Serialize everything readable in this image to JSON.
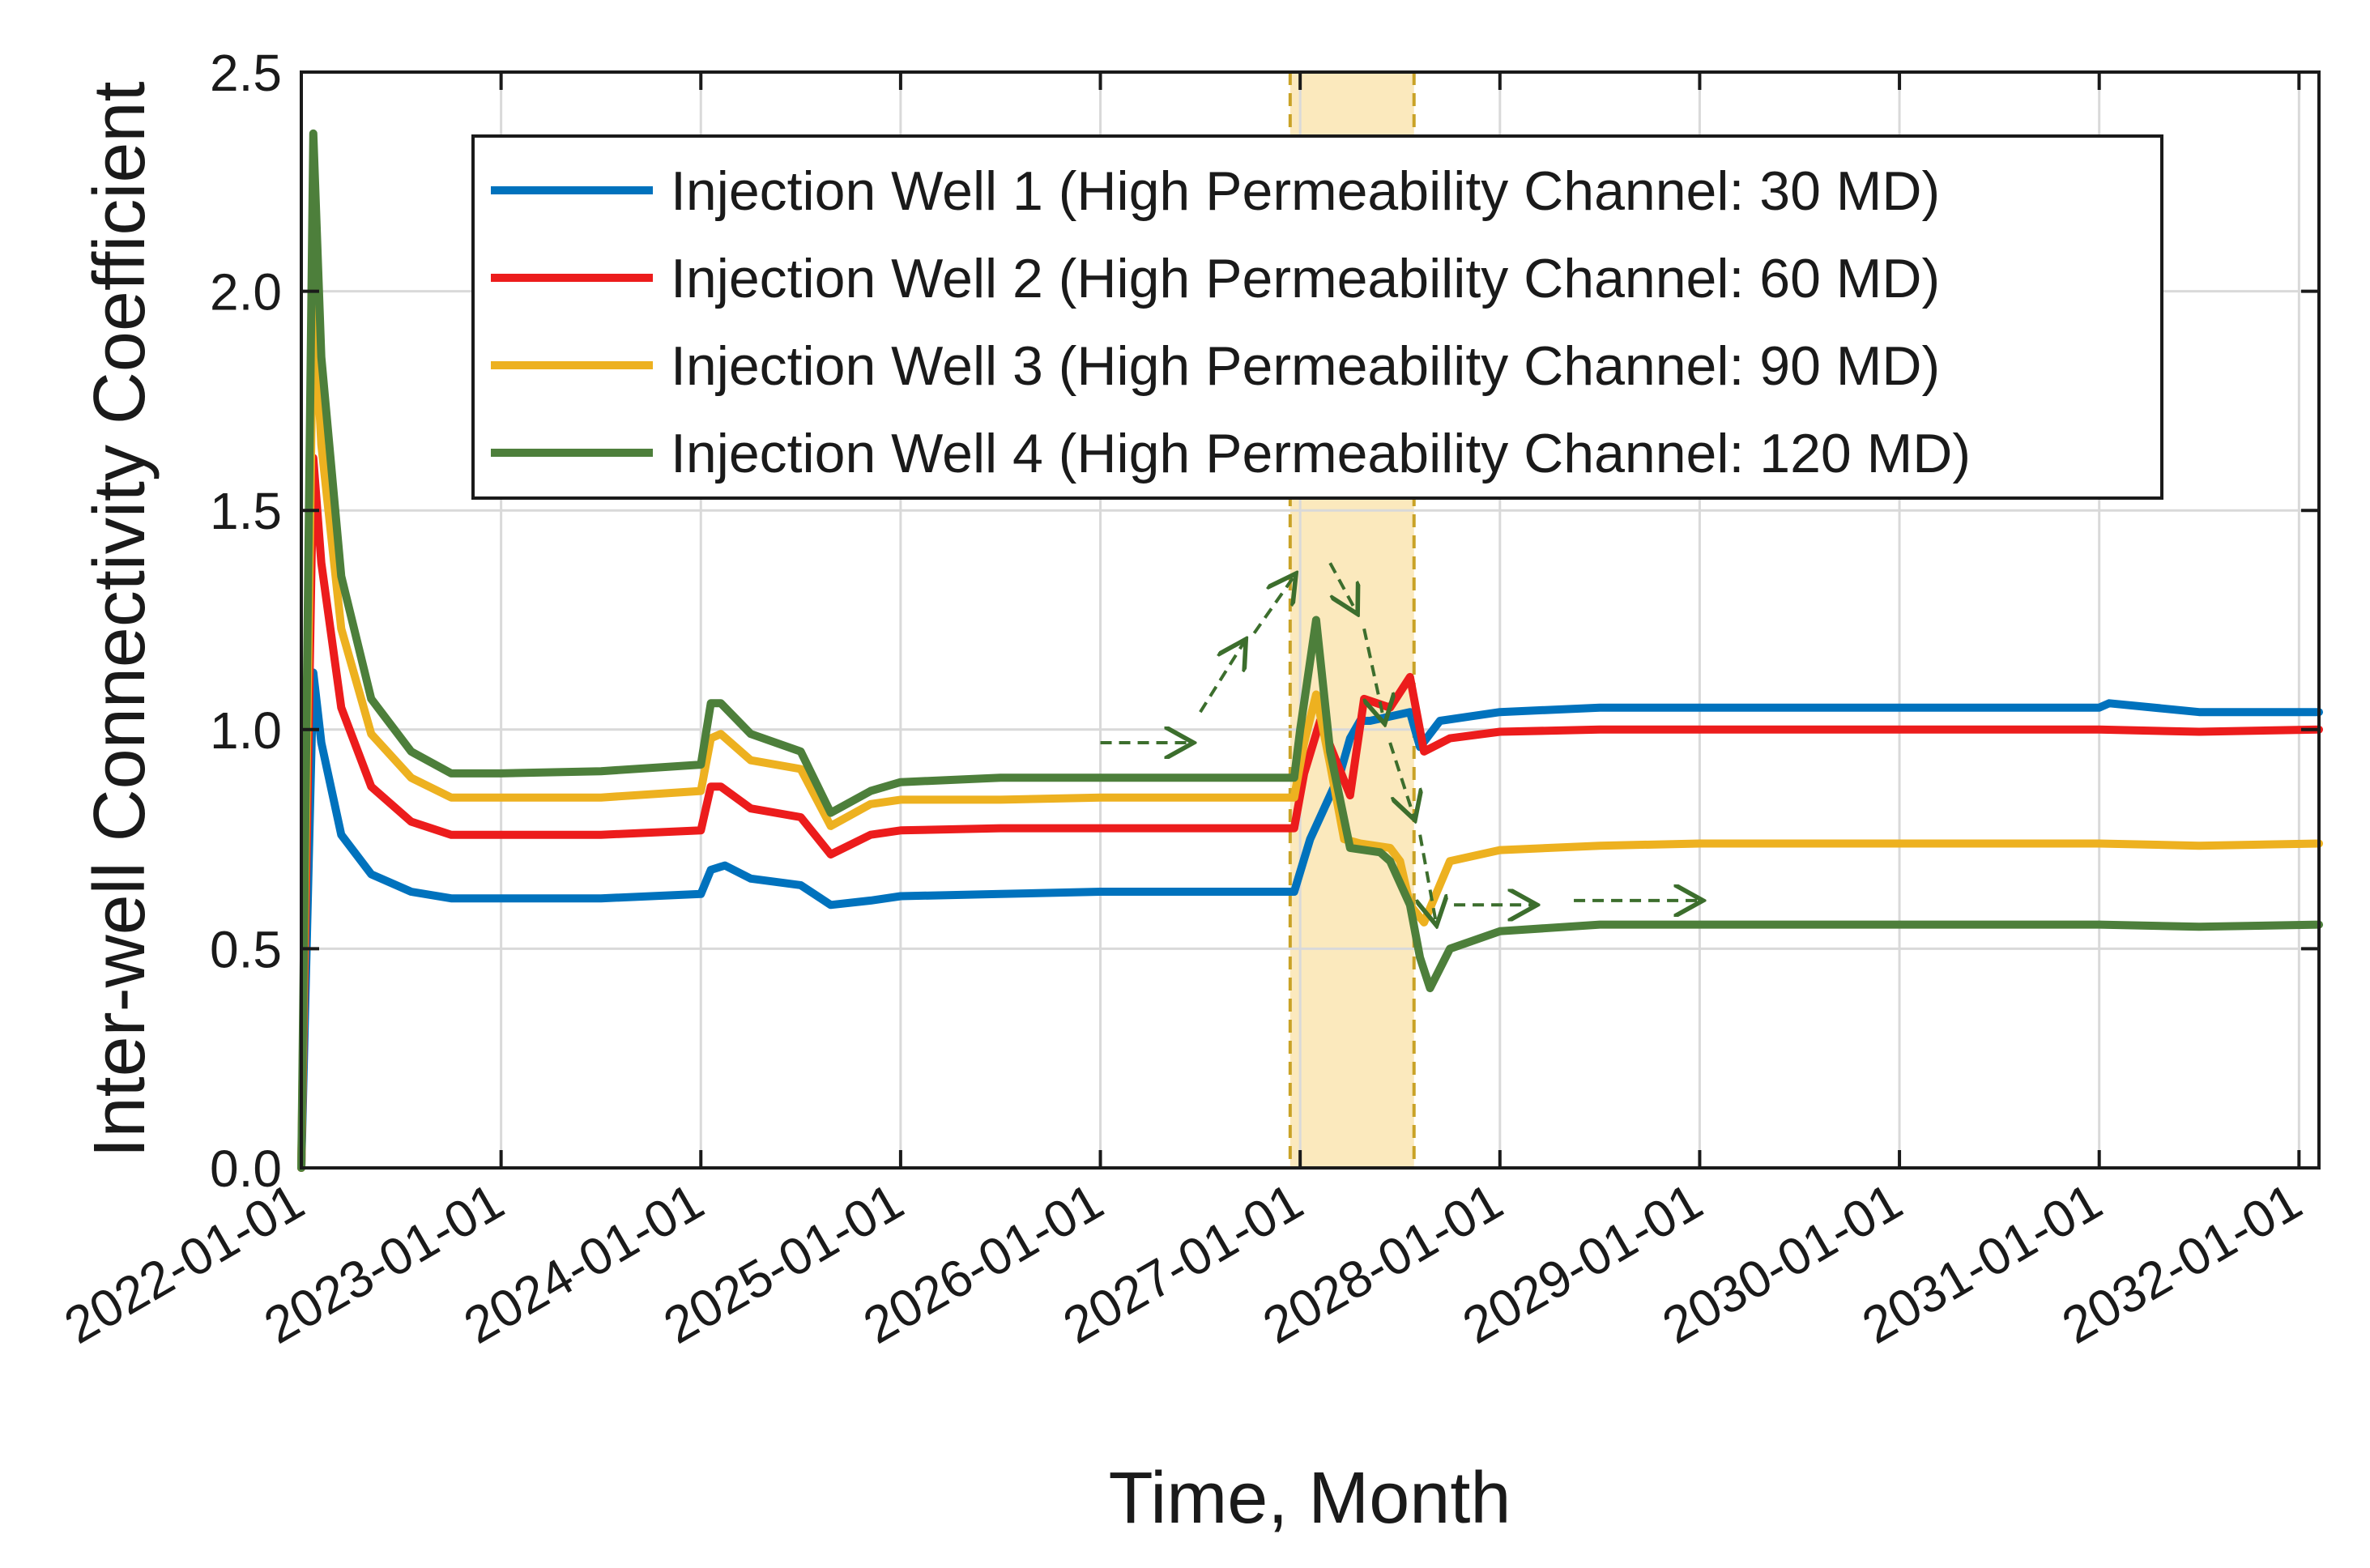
{
  "chart_data": {
    "type": "line",
    "xlabel": "Time, Month",
    "ylabel": "Inter-well Connectivity Coefficient",
    "xlim": [
      2022.0,
      2032.1
    ],
    "ylim": [
      0,
      2.5
    ],
    "grid": true,
    "legend_position": "top-center",
    "x_ticks": [
      {
        "value": 2022.0,
        "label": "2022-01-01"
      },
      {
        "value": 2023.0,
        "label": "2023-01-01"
      },
      {
        "value": 2024.0,
        "label": "2024-01-01"
      },
      {
        "value": 2025.0,
        "label": "2025-01-01"
      },
      {
        "value": 2026.0,
        "label": "2026-01-01"
      },
      {
        "value": 2027.0,
        "label": "2027-01-01"
      },
      {
        "value": 2028.0,
        "label": "2028-01-01"
      },
      {
        "value": 2029.0,
        "label": "2029-01-01"
      },
      {
        "value": 2030.0,
        "label": "2030-01-01"
      },
      {
        "value": 2031.0,
        "label": "2031-01-01"
      },
      {
        "value": 2032.0,
        "label": "2032-01-01"
      }
    ],
    "y_ticks": [
      {
        "value": 0.0,
        "label": "0.0"
      },
      {
        "value": 0.5,
        "label": "0.5"
      },
      {
        "value": 1.0,
        "label": "1.0"
      },
      {
        "value": 1.5,
        "label": "1.5"
      },
      {
        "value": 2.0,
        "label": "2.0"
      },
      {
        "value": 2.5,
        "label": "2.5"
      }
    ],
    "highlight_band": {
      "x_start": 2026.95,
      "x_end": 2027.57,
      "color": "#fbe9bd",
      "border_color": "#c9a227"
    },
    "annotation_arrows": [
      {
        "from": [
          2026.0,
          0.97
        ],
        "to": [
          2026.45,
          0.97
        ]
      },
      {
        "from": [
          2026.5,
          1.04
        ],
        "to": [
          2026.72,
          1.2
        ]
      },
      {
        "from": [
          2026.77,
          1.22
        ],
        "to": [
          2026.97,
          1.35
        ]
      },
      {
        "from": [
          2027.15,
          1.38
        ],
        "to": [
          2027.28,
          1.27
        ]
      },
      {
        "from": [
          2027.32,
          1.23
        ],
        "to": [
          2027.42,
          1.02
        ]
      },
      {
        "from": [
          2027.45,
          0.97
        ],
        "to": [
          2027.57,
          0.8
        ]
      },
      {
        "from": [
          2027.6,
          0.76
        ],
        "to": [
          2027.68,
          0.56
        ]
      },
      {
        "from": [
          2027.77,
          0.6
        ],
        "to": [
          2028.17,
          0.6
        ]
      },
      {
        "from": [
          2028.37,
          0.61
        ],
        "to": [
          2029.0,
          0.61
        ]
      }
    ],
    "series": [
      {
        "name": "Injection Well 1 (High Permeability Channel: 30 MD)",
        "color": "#0072bd",
        "x": [
          2022.0,
          2022.06,
          2022.1,
          2022.2,
          2022.35,
          2022.55,
          2022.75,
          2023.0,
          2023.5,
          2024.0,
          2024.05,
          2024.12,
          2024.25,
          2024.5,
          2024.65,
          2024.85,
          2025.0,
          2025.5,
          2026.0,
          2026.5,
          2026.97,
          2027.05,
          2027.15,
          2027.2,
          2027.25,
          2027.3,
          2027.35,
          2027.45,
          2027.55,
          2027.6,
          2027.7,
          2028.0,
          2028.5,
          2029.0,
          2030.0,
          2031.0,
          2031.05,
          2031.5,
          2032.1
        ],
        "values": [
          0.0,
          1.13,
          0.97,
          0.76,
          0.67,
          0.63,
          0.615,
          0.615,
          0.615,
          0.625,
          0.68,
          0.69,
          0.66,
          0.645,
          0.6,
          0.61,
          0.62,
          0.625,
          0.63,
          0.63,
          0.63,
          0.75,
          0.85,
          0.9,
          0.98,
          1.02,
          1.02,
          1.03,
          1.04,
          0.96,
          1.02,
          1.04,
          1.05,
          1.05,
          1.05,
          1.05,
          1.06,
          1.04,
          1.04
        ]
      },
      {
        "name": "Injection Well 2 (High Permeability Channel: 60 MD)",
        "color": "#ec1c1c",
        "x": [
          2022.0,
          2022.06,
          2022.1,
          2022.2,
          2022.35,
          2022.55,
          2022.75,
          2023.0,
          2023.5,
          2024.0,
          2024.05,
          2024.1,
          2024.25,
          2024.5,
          2024.65,
          2024.85,
          2025.0,
          2025.5,
          2026.0,
          2026.5,
          2026.97,
          2027.02,
          2027.1,
          2027.25,
          2027.32,
          2027.45,
          2027.55,
          2027.62,
          2027.75,
          2028.0,
          2028.5,
          2029.0,
          2030.0,
          2031.0,
          2031.5,
          2032.1
        ],
        "values": [
          0.0,
          1.62,
          1.38,
          1.05,
          0.87,
          0.79,
          0.76,
          0.76,
          0.76,
          0.77,
          0.87,
          0.87,
          0.82,
          0.8,
          0.715,
          0.76,
          0.77,
          0.775,
          0.775,
          0.775,
          0.775,
          0.9,
          1.02,
          0.85,
          1.07,
          1.05,
          1.12,
          0.95,
          0.98,
          0.995,
          1.0,
          1.0,
          1.0,
          1.0,
          0.995,
          1.0
        ]
      },
      {
        "name": "Injection Well 3 (High Permeability Channel: 90 MD)",
        "color": "#edb120",
        "x": [
          2022.0,
          2022.06,
          2022.1,
          2022.2,
          2022.35,
          2022.55,
          2022.75,
          2023.0,
          2023.5,
          2024.0,
          2024.05,
          2024.1,
          2024.25,
          2024.5,
          2024.65,
          2024.85,
          2025.0,
          2025.5,
          2026.0,
          2026.5,
          2026.97,
          2027.02,
          2027.08,
          2027.15,
          2027.22,
          2027.3,
          2027.45,
          2027.5,
          2027.55,
          2027.62,
          2027.75,
          2028.0,
          2028.5,
          2029.0,
          2030.0,
          2031.0,
          2031.5,
          2032.1
        ],
        "values": [
          0.0,
          2.0,
          1.65,
          1.23,
          0.99,
          0.89,
          0.845,
          0.845,
          0.845,
          0.86,
          0.98,
          0.99,
          0.93,
          0.91,
          0.78,
          0.83,
          0.84,
          0.84,
          0.845,
          0.845,
          0.845,
          0.97,
          1.08,
          0.92,
          0.75,
          0.74,
          0.73,
          0.7,
          0.6,
          0.56,
          0.7,
          0.725,
          0.735,
          0.74,
          0.74,
          0.74,
          0.735,
          0.74
        ]
      },
      {
        "name": "Injection Well 4 (High Permeability Channel: 120 MD)",
        "color": "#4d7f3b",
        "x": [
          2022.0,
          2022.06,
          2022.1,
          2022.2,
          2022.35,
          2022.55,
          2022.75,
          2023.0,
          2023.5,
          2024.0,
          2024.05,
          2024.1,
          2024.25,
          2024.5,
          2024.65,
          2024.85,
          2025.0,
          2025.5,
          2026.0,
          2026.5,
          2026.97,
          2027.0,
          2027.08,
          2027.15,
          2027.25,
          2027.4,
          2027.45,
          2027.55,
          2027.6,
          2027.65,
          2027.75,
          2028.0,
          2028.5,
          2029.0,
          2030.0,
          2031.0,
          2031.5,
          2032.1
        ],
        "values": [
          0.0,
          2.36,
          1.85,
          1.35,
          1.07,
          0.95,
          0.9,
          0.9,
          0.905,
          0.92,
          1.06,
          1.06,
          0.99,
          0.95,
          0.81,
          0.86,
          0.88,
          0.89,
          0.89,
          0.89,
          0.89,
          1.0,
          1.25,
          0.95,
          0.73,
          0.72,
          0.7,
          0.6,
          0.48,
          0.41,
          0.5,
          0.54,
          0.555,
          0.555,
          0.555,
          0.555,
          0.55,
          0.555
        ]
      }
    ]
  }
}
